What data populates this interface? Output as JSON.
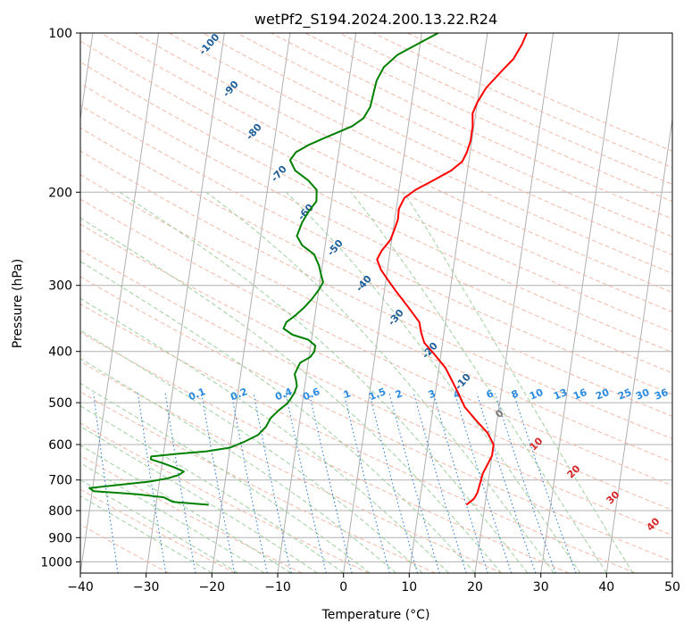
{
  "chart_data": {
    "type": "line",
    "title": "wetPf2_S194.2024.200.13.22.R24",
    "xlabel": "Temperature (°C)",
    "ylabel": "Pressure (hPa)",
    "xlim": [
      -40,
      50
    ],
    "ylim": [
      1050,
      100
    ],
    "y_scale": "log",
    "x_ticks": [
      -40,
      -30,
      -20,
      -10,
      0,
      10,
      20,
      30,
      40,
      50
    ],
    "y_ticks": [
      100,
      200,
      300,
      400,
      500,
      600,
      700,
      800,
      900,
      1000
    ],
    "grid": true,
    "series": [
      {
        "role": "temperature",
        "color": "#ff0000",
        "points": [
          [
            17.2,
            780
          ],
          [
            18.2,
            760
          ],
          [
            18.6,
            740
          ],
          [
            18.8,
            710
          ],
          [
            19.0,
            680
          ],
          [
            19.4,
            660
          ],
          [
            20.0,
            630
          ],
          [
            20.0,
            600
          ],
          [
            18.8,
            570
          ],
          [
            16.8,
            540
          ],
          [
            14.8,
            510
          ],
          [
            13.5,
            480
          ],
          [
            12.3,
            455
          ],
          [
            11.0,
            430
          ],
          [
            9.0,
            405
          ],
          [
            7.2,
            385
          ],
          [
            6.5,
            368
          ],
          [
            6.0,
            352
          ],
          [
            4.0,
            330
          ],
          [
            1.8,
            308
          ],
          [
            0.3,
            293
          ],
          [
            -1.0,
            280
          ],
          [
            -1.8,
            268
          ],
          [
            -1.3,
            258
          ],
          [
            -0.2,
            246
          ],
          [
            0.2,
            235
          ],
          [
            0.5,
            225
          ],
          [
            0.4,
            215
          ],
          [
            1.0,
            205
          ],
          [
            2.5,
            198
          ],
          [
            5.0,
            190
          ],
          [
            7.5,
            182
          ],
          [
            9.0,
            175
          ],
          [
            9.5,
            168
          ],
          [
            9.8,
            160
          ],
          [
            9.8,
            150
          ],
          [
            9.5,
            142
          ],
          [
            10.0,
            135
          ],
          [
            11.0,
            127
          ],
          [
            13.0,
            118
          ],
          [
            14.5,
            112
          ],
          [
            15.5,
            105
          ],
          [
            16.0,
            100
          ]
        ]
      },
      {
        "role": "dewpoint",
        "color": "#008000",
        "points": [
          [
            -22.0,
            780
          ],
          [
            -27.5,
            770
          ],
          [
            -29.0,
            755
          ],
          [
            -33.0,
            745
          ],
          [
            -39.8,
            735
          ],
          [
            -40.5,
            725
          ],
          [
            -36.0,
            715
          ],
          [
            -31.5,
            705
          ],
          [
            -28.8,
            695
          ],
          [
            -27.2,
            685
          ],
          [
            -26.5,
            675
          ],
          [
            -28.0,
            663
          ],
          [
            -30.0,
            650
          ],
          [
            -31.8,
            640
          ],
          [
            -31.8,
            632
          ],
          [
            -28.0,
            625
          ],
          [
            -23.5,
            618
          ],
          [
            -20.0,
            608
          ],
          [
            -18.0,
            593
          ],
          [
            -16.0,
            575
          ],
          [
            -15.0,
            555
          ],
          [
            -14.5,
            535
          ],
          [
            -13.5,
            518
          ],
          [
            -12.3,
            502
          ],
          [
            -11.8,
            490
          ],
          [
            -11.4,
            478
          ],
          [
            -11.2,
            465
          ],
          [
            -11.5,
            452
          ],
          [
            -11.8,
            442
          ],
          [
            -11.5,
            430
          ],
          [
            -11.2,
            420
          ],
          [
            -9.8,
            410
          ],
          [
            -9.3,
            400
          ],
          [
            -9.3,
            390
          ],
          [
            -10.5,
            380
          ],
          [
            -13.0,
            372
          ],
          [
            -14.5,
            362
          ],
          [
            -14.2,
            352
          ],
          [
            -13.0,
            342
          ],
          [
            -11.8,
            330
          ],
          [
            -10.8,
            318
          ],
          [
            -10.0,
            306
          ],
          [
            -9.5,
            296
          ],
          [
            -10.0,
            286
          ],
          [
            -10.5,
            275
          ],
          [
            -11.5,
            262
          ],
          [
            -13.5,
            252
          ],
          [
            -14.5,
            242
          ],
          [
            -14.0,
            228
          ],
          [
            -13.3,
            218
          ],
          [
            -12.3,
            208
          ],
          [
            -12.5,
            198
          ],
          [
            -14.0,
            190
          ],
          [
            -16.2,
            182
          ],
          [
            -17.2,
            174
          ],
          [
            -16.5,
            168
          ],
          [
            -14.8,
            163
          ],
          [
            -12.5,
            158
          ],
          [
            -10.5,
            154
          ],
          [
            -8.5,
            150
          ],
          [
            -7.0,
            145
          ],
          [
            -6.2,
            138
          ],
          [
            -6.0,
            130
          ],
          [
            -5.8,
            123
          ],
          [
            -5.0,
            116
          ],
          [
            -3.2,
            110
          ],
          [
            -1.0,
            106
          ],
          [
            2.5,
            100
          ]
        ]
      }
    ],
    "dry_adiabats_C": [
      -100,
      -90,
      -80,
      -70,
      -60,
      -50,
      -40,
      -30,
      -20,
      -10
    ],
    "mixing_ratios": [
      "0.1",
      "0.2",
      "0.4",
      "0.6",
      "1",
      "1.5",
      "2",
      "3",
      "4",
      "6",
      "8",
      "10",
      "13",
      "16",
      "20",
      "25",
      "30",
      "36"
    ],
    "moist_adiabats_C": [
      "0",
      "10",
      "20",
      "30",
      "40"
    ],
    "colors": {
      "isotherm": "#b0b0b0",
      "dry_adiabat": "#f2b8a8",
      "moist_adiabat": "#9fd09f",
      "mixing_ratio": "#1f77d4",
      "dry_label": "#1f5f99",
      "moist_label": "#d62728",
      "mix_label": "#2a8be0"
    }
  }
}
